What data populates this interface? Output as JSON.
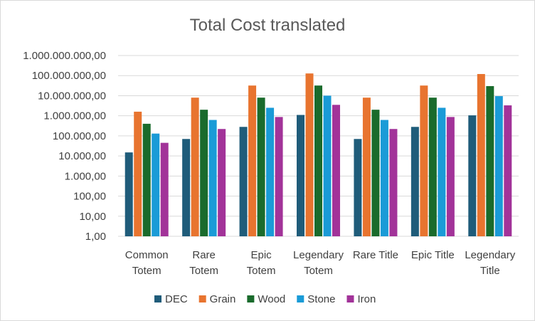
{
  "chart_data": {
    "type": "bar",
    "title": "Total Cost translated",
    "yscale": "log",
    "ylim": [
      1,
      1000000000
    ],
    "y_tick_labels": [
      "1,00",
      "10,00",
      "100,00",
      "1.000,00",
      "10.000,00",
      "100.000,00",
      "1.000.000,00",
      "10.000.000,00",
      "100.000.000,00",
      "1.000.000.000,00"
    ],
    "categories": [
      [
        "Common",
        "Totem"
      ],
      [
        "Rare",
        "Totem"
      ],
      [
        "Epic",
        "Totem"
      ],
      [
        "Legendary",
        "Totem"
      ],
      [
        "Rare Title"
      ],
      [
        "Epic Title"
      ],
      [
        "Legendary",
        "Title"
      ]
    ],
    "series": [
      {
        "name": "DEC",
        "color": "#1f5c7a",
        "values": [
          15000,
          70000,
          280000,
          1100000,
          70000,
          280000,
          1050000
        ]
      },
      {
        "name": "Grain",
        "color": "#e8742f",
        "values": [
          1600000,
          8000000,
          32000000,
          128000000,
          8000000,
          32000000,
          120000000
        ]
      },
      {
        "name": "Wood",
        "color": "#1a6b2c",
        "values": [
          400000,
          2000000,
          8000000,
          32000000,
          2000000,
          8000000,
          30000000
        ]
      },
      {
        "name": "Stone",
        "color": "#1a9bd7",
        "values": [
          130000,
          620000,
          2500000,
          10000000,
          620000,
          2500000,
          9500000
        ]
      },
      {
        "name": "Iron",
        "color": "#a23399",
        "values": [
          45000,
          220000,
          870000,
          3500000,
          220000,
          870000,
          3300000
        ]
      }
    ],
    "grid": true,
    "legend_position": "bottom"
  }
}
